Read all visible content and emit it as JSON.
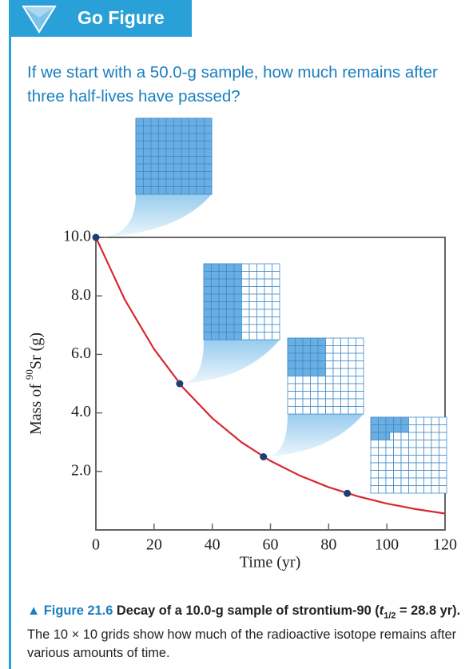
{
  "header": {
    "title": "Go Figure"
  },
  "question": "If we start with a 50.0-g sample, how much remains after three half-lives have passed?",
  "chart_data": {
    "type": "line",
    "xlabel": "Time (yr)",
    "ylabel": {
      "prefix": "Mass of ",
      "sup": "90",
      "rest": "Sr (g)"
    },
    "xlim": [
      0,
      120
    ],
    "xticks": [
      0,
      20,
      40,
      60,
      80,
      100,
      120
    ],
    "ylim": [
      0,
      10
    ],
    "yticks": [
      {
        "value": 2,
        "label": "2.0"
      },
      {
        "value": 4,
        "label": "4.0"
      },
      {
        "value": 6,
        "label": "6.0"
      },
      {
        "value": 8,
        "label": "8.0"
      },
      {
        "value": 10,
        "label": "10.0"
      }
    ],
    "series": [
      {
        "color": "#d7282f",
        "x": [
          0,
          10,
          20,
          30,
          40,
          50,
          60,
          70,
          80,
          90,
          100,
          110,
          120
        ],
        "values": [
          10,
          7.86,
          6.18,
          4.86,
          3.82,
          3.0,
          2.36,
          1.86,
          1.46,
          1.15,
          0.9,
          0.71,
          0.56
        ]
      },
      {
        "color": "#1b3f73",
        "x": [
          0,
          28.8,
          57.6,
          86.4
        ],
        "values": [
          10,
          5,
          2.5,
          1.25
        ]
      }
    ],
    "grid_filled": [
      100,
      50,
      25,
      12.5
    ]
  },
  "caption": {
    "marker": "▲",
    "label": "Figure 21.6",
    "title_a": "Decay of a 10.0-g sample of strontium-90 (",
    "t": "t",
    "sub": "1/2",
    "title_b": " = 28.8 yr).",
    "body": "The 10 × 10 grids show how much of the radioactive isotope remains after various amounts of time."
  }
}
